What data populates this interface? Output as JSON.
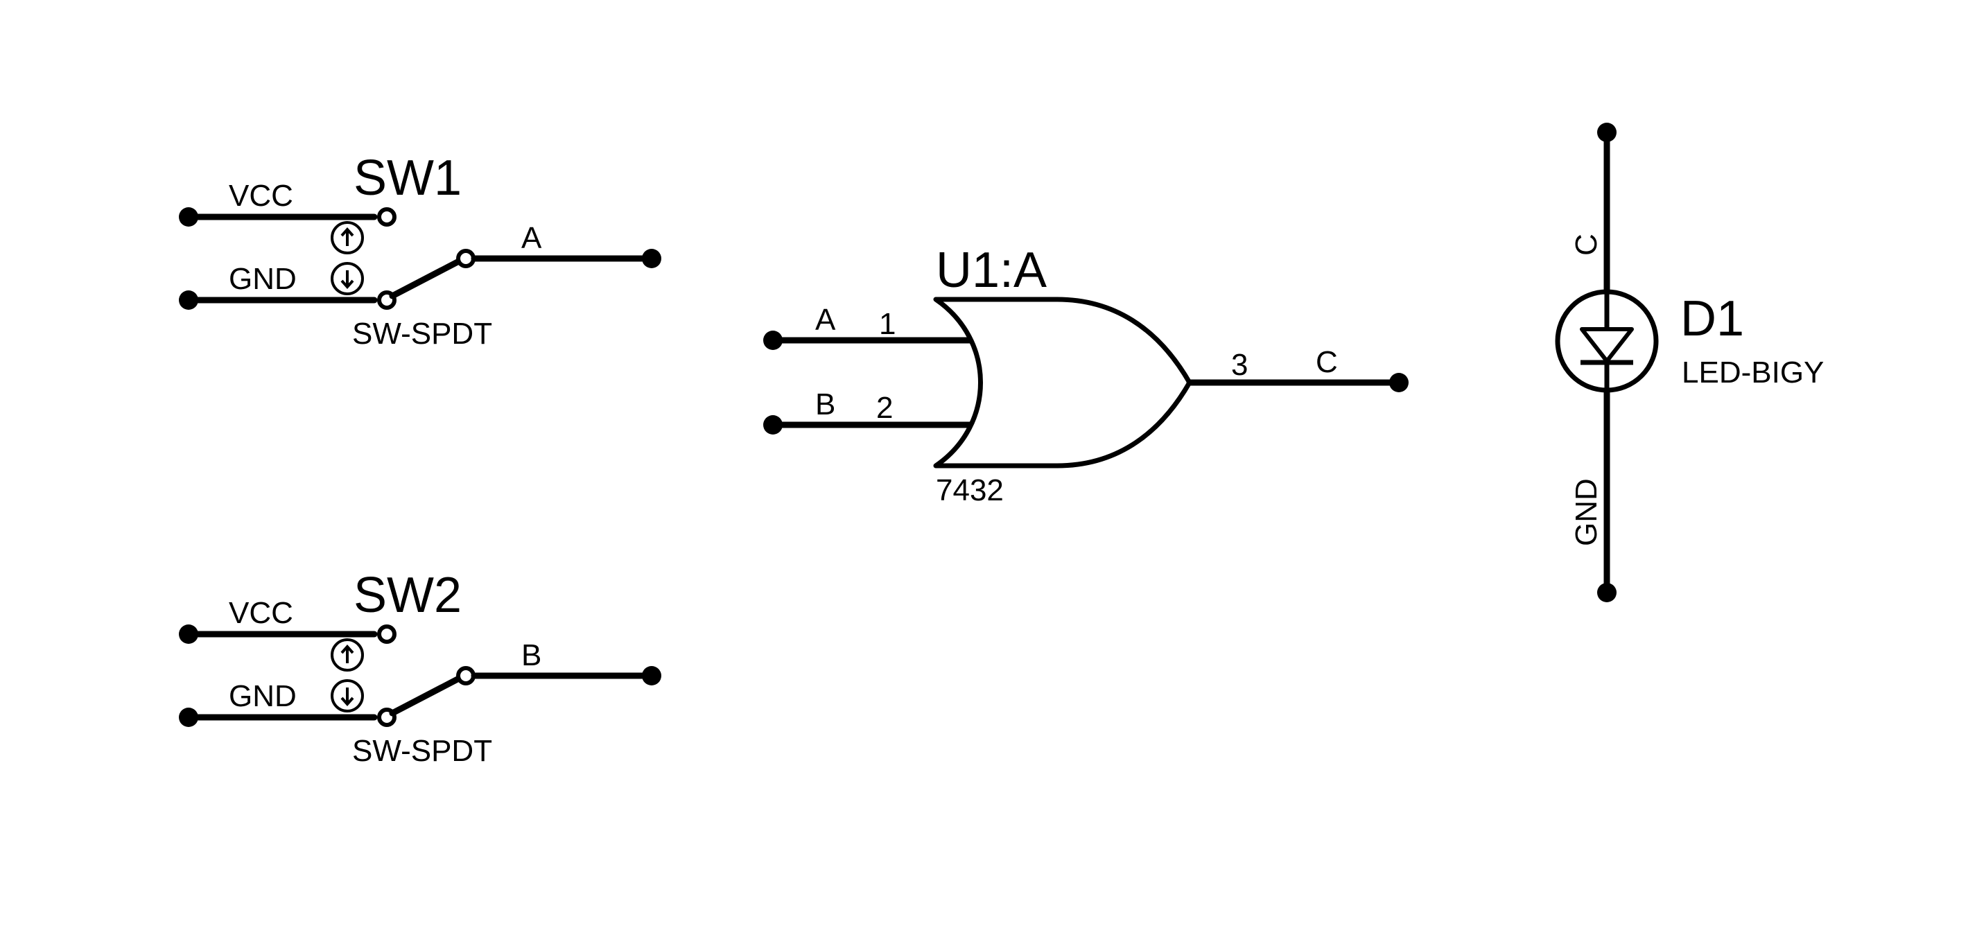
{
  "sw1": {
    "ref": "SW1",
    "value": "SW-SPDT",
    "up_net": "VCC",
    "down_net": "GND",
    "out_net": "A",
    "up_icon": "arrow-up-icon",
    "down_icon": "arrow-down-icon"
  },
  "sw2": {
    "ref": "SW2",
    "value": "SW-SPDT",
    "up_net": "VCC",
    "down_net": "GND",
    "out_net": "B",
    "up_icon": "arrow-up-icon",
    "down_icon": "arrow-down-icon"
  },
  "gate": {
    "ref": "U1:A",
    "value": "7432",
    "in1_net": "A",
    "in1_pin": "1",
    "in2_net": "B",
    "in2_pin": "2",
    "out_pin": "3",
    "out_net": "C"
  },
  "led": {
    "ref": "D1",
    "value": "LED-BIGY",
    "anode_net": "C",
    "cathode_net": "GND"
  }
}
